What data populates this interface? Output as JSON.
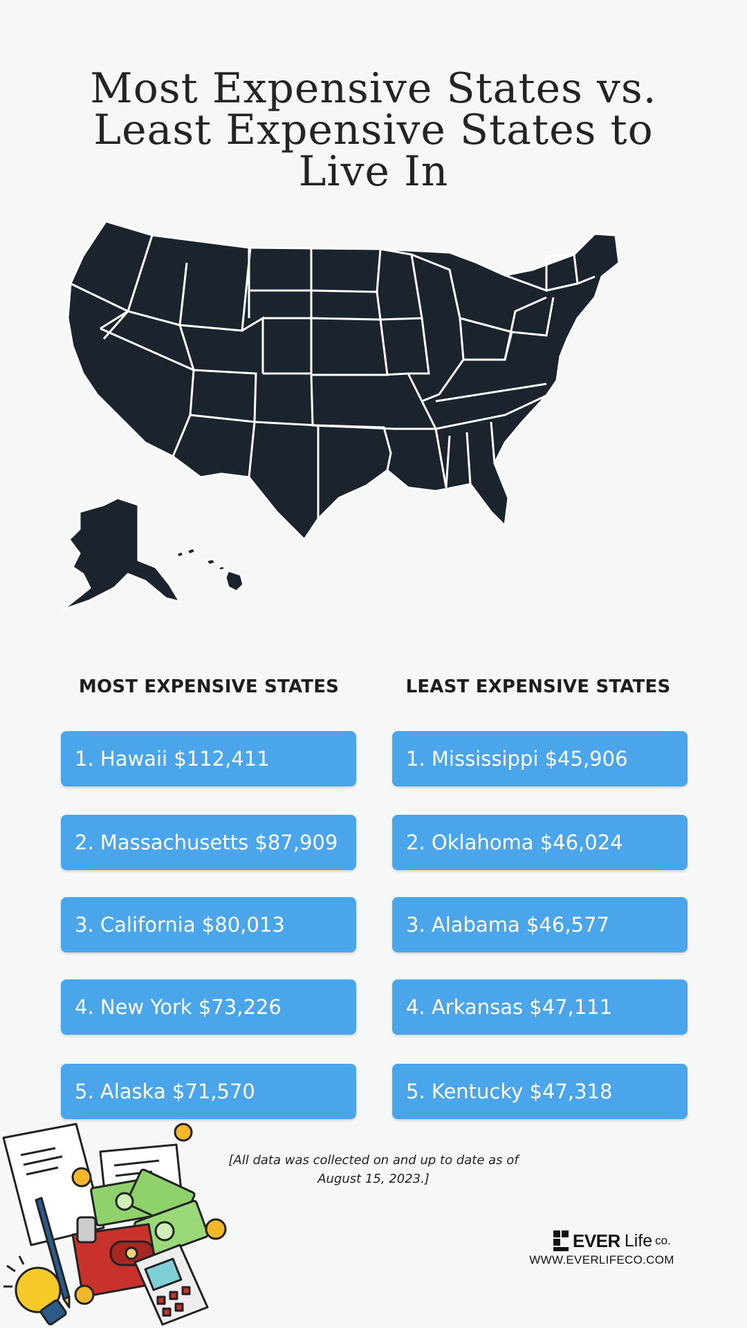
{
  "title": {
    "line1": "Most Expensive States vs.",
    "line2": "Least Expensive States to",
    "line3": "Live In"
  },
  "columns": {
    "most_heading": "MOST EXPENSIVE STATES",
    "least_heading": "LEAST EXPENSIVE STATES"
  },
  "most_expensive": [
    {
      "label": "1. Hawaii $112,411"
    },
    {
      "label": "2. Massachusetts $87,909"
    },
    {
      "label": "3. California $80,013"
    },
    {
      "label": "4. New York $73,226"
    },
    {
      "label": "5. Alaska $71,570"
    }
  ],
  "least_expensive": [
    {
      "label": "1. Mississippi $45,906"
    },
    {
      "label": "2. Oklahoma $46,024"
    },
    {
      "label": "3. Alabama $46,577"
    },
    {
      "label": "4. Arkansas $47,111"
    },
    {
      "label": "5. Kentucky $47,318"
    }
  ],
  "footnote": {
    "line1": "[All data was collected on and up to date as of",
    "line2": "August 15, 2023.]"
  },
  "brand": {
    "ever": "EVER",
    "life": "Life",
    "co": "co.",
    "url": "WWW.EVERLIFECO.COM"
  },
  "colors": {
    "background": "#f6f7f7",
    "box_fill": "#4aa5ea",
    "map_fill": "#1b232d",
    "text_dark": "#222222"
  },
  "icons": [
    "us-map-icon",
    "wallet-icon",
    "money-bills-icon",
    "coin-icon",
    "calculator-icon",
    "light-bulb-icon",
    "pencil-icon",
    "document-icon"
  ]
}
